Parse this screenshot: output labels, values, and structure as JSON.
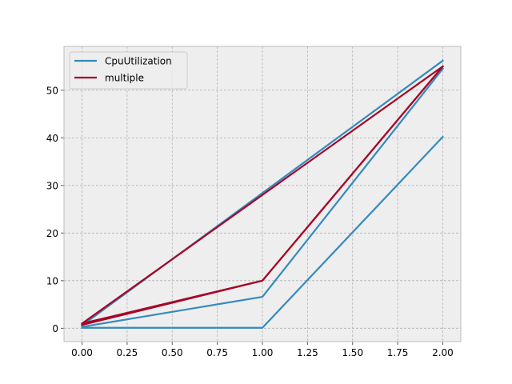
{
  "chart_data": {
    "type": "line",
    "title": "",
    "xlabel": "",
    "ylabel": "",
    "xlim": [
      -0.1,
      2.1
    ],
    "ylim": [
      -2.8,
      59.2
    ],
    "xticks": [
      0.0,
      0.25,
      0.5,
      0.75,
      1.0,
      1.25,
      1.5,
      1.75,
      2.0
    ],
    "xtick_labels": [
      "0.00",
      "0.25",
      "0.50",
      "0.75",
      "1.00",
      "1.25",
      "1.50",
      "1.75",
      "2.00"
    ],
    "yticks": [
      0,
      10,
      20,
      30,
      40,
      50
    ],
    "ytick_labels": [
      "0",
      "10",
      "20",
      "30",
      "40",
      "50"
    ],
    "grid": true,
    "legend_position": "top-left",
    "background": "#eeeeee",
    "grid_color": "#b2b2b2",
    "legend": [
      {
        "name": "CpuUtilization",
        "color": "#348abd"
      },
      {
        "name": "multiple",
        "color": "#a60628"
      }
    ],
    "series": [
      {
        "group": "CpuUtilization",
        "color": "#348abd",
        "x": [
          0,
          1,
          2
        ],
        "y": [
          0.1,
          0.1,
          40.2
        ]
      },
      {
        "group": "CpuUtilization",
        "color": "#348abd",
        "x": [
          0,
          1,
          2
        ],
        "y": [
          0.3,
          6.6,
          54.5
        ]
      },
      {
        "group": "CpuUtilization",
        "color": "#348abd",
        "x": [
          0,
          2
        ],
        "y": [
          0.6,
          56.2
        ]
      },
      {
        "group": "multiple",
        "color": "#a60628",
        "x": [
          0,
          1,
          2
        ],
        "y": [
          0.7,
          10.0,
          55.0
        ]
      },
      {
        "group": "multiple",
        "color": "#a60628",
        "x": [
          0,
          1,
          2
        ],
        "y": [
          1.0,
          10.0,
          55.0
        ]
      },
      {
        "group": "multiple",
        "color": "#a60628",
        "x": [
          0,
          2
        ],
        "y": [
          1.0,
          55.0
        ]
      }
    ]
  }
}
